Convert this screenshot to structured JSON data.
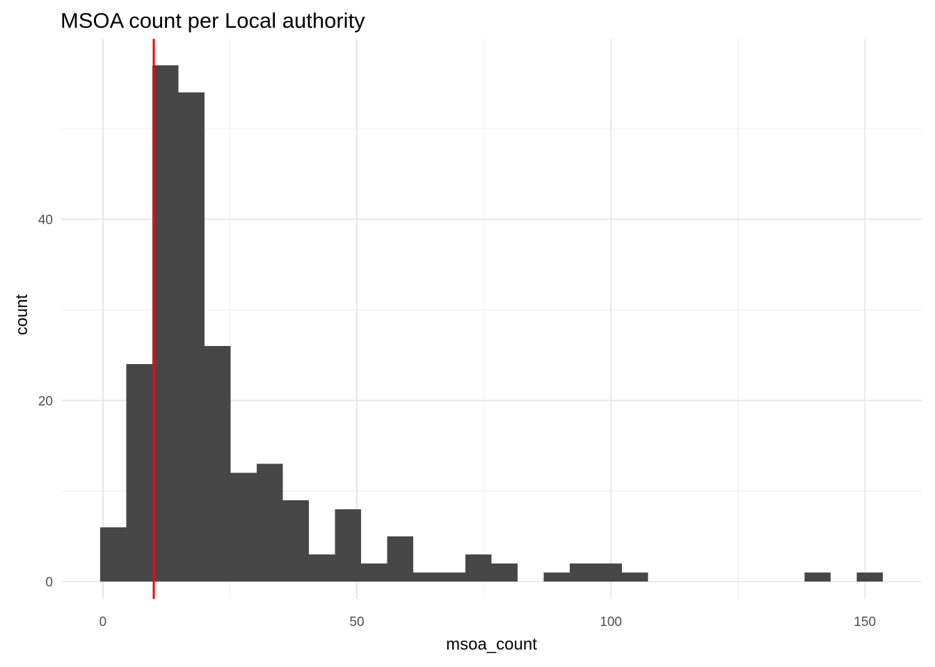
{
  "title": "MSOA count per Local authority",
  "axes": {
    "x_label": "msoa_count",
    "y_label": "count"
  },
  "chart_data": {
    "type": "bar",
    "subtype": "histogram",
    "title": "MSOA count per Local authority",
    "xlabel": "msoa_count",
    "ylabel": "count",
    "bin_start": -0.5,
    "bin_width": 5.1333,
    "bin_counts": [
      6,
      24,
      57,
      54,
      26,
      12,
      13,
      9,
      3,
      8,
      2,
      5,
      1,
      1,
      3,
      2,
      0,
      1,
      2,
      2,
      1,
      0,
      0,
      0,
      0,
      0,
      0,
      1,
      0,
      1
    ],
    "vline_x": 10,
    "xlim": [
      -8.2,
      161.2
    ],
    "ylim": [
      -1.9,
      59.9
    ],
    "x_major_ticks": [
      0,
      50,
      100,
      150
    ],
    "y_major_ticks": [
      0,
      20,
      40
    ],
    "x_minor_ticks": [
      25,
      75,
      125
    ],
    "y_minor_ticks": [
      10,
      30,
      50
    ],
    "grid": "major+minor",
    "legend": "none",
    "colors": {
      "bar_fill": "#474747",
      "vline": "#FB0000",
      "grid_major": "#E7E7E7",
      "grid_minor": "#EFEFEF",
      "background": "#FFFFFF",
      "tick_text": "#4D4D4D",
      "title_text": "#000000"
    }
  }
}
